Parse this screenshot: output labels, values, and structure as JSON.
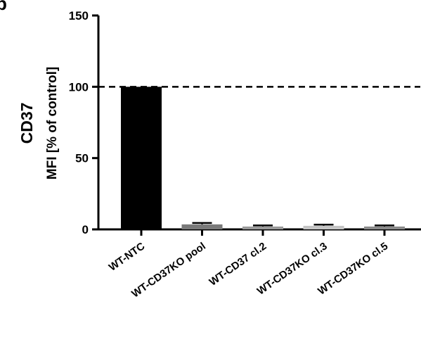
{
  "chart_data": {
    "type": "bar",
    "panel_letter": "b",
    "ylabel_line1": "CD37",
    "ylabel_line2": "MFI [% of control]",
    "xlabel": "",
    "categories": [
      "WT-NTC",
      "WT-CD37KO pool",
      "WT-CD37 cl.2",
      "WT-CD37KO cl.3",
      "WT-CD37KO cl.5"
    ],
    "values": [
      100,
      3.5,
      2.0,
      2.5,
      2.0
    ],
    "errors": [
      0,
      1.0,
      0.8,
      0.8,
      0.8
    ],
    "bar_colors": [
      "#000000",
      "#7a7a7a",
      "#9a9a9a",
      "#c4c4c4",
      "#8a8a8a"
    ],
    "reference_line": 100,
    "ylim": [
      0,
      150
    ],
    "yticks": [
      0,
      50,
      100,
      150
    ],
    "grid": false,
    "legend": "none"
  }
}
